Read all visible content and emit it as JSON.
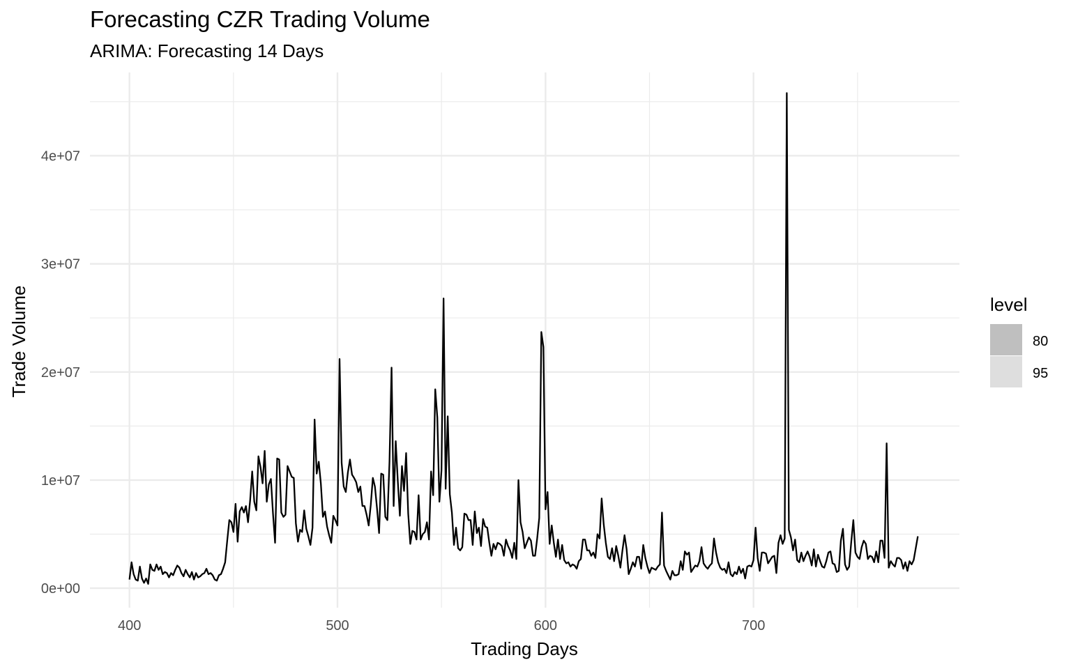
{
  "chart_data": {
    "type": "line",
    "title": "Forecasting CZR Trading Volume",
    "subtitle": "ARIMA: Forecasting 14 Days",
    "xlabel": "Trading Days",
    "ylabel": "Trade Volume",
    "xlim": [
      381,
      799
    ],
    "ylim": [
      -1800000,
      47700000
    ],
    "x_ticks": [
      400,
      500,
      600,
      700
    ],
    "x_tick_labels": [
      "400",
      "500",
      "600",
      "700"
    ],
    "y_ticks": [
      0,
      10000000,
      20000000,
      30000000,
      40000000
    ],
    "y_tick_labels": [
      "0e+00",
      "1e+07",
      "2e+07",
      "3e+07",
      "4e+07"
    ],
    "grid": true,
    "legend": {
      "title": "level",
      "position": "right",
      "items": [
        {
          "label": "80",
          "color": "#bfbfbf"
        },
        {
          "label": "95",
          "color": "#dedede"
        }
      ]
    },
    "line_color": "#000000",
    "series": [
      {
        "x": [
          400,
          401,
          402,
          403,
          404,
          405,
          406,
          407,
          408,
          409,
          410,
          411,
          412,
          413,
          414,
          415,
          416,
          417,
          418,
          419,
          420,
          421,
          422,
          423,
          424,
          425,
          426,
          427,
          428,
          429,
          430,
          431,
          432,
          433,
          434,
          435,
          436,
          437,
          438,
          439,
          440,
          441,
          442,
          443,
          444,
          445,
          446,
          447,
          448,
          449,
          450,
          451,
          452,
          453,
          454,
          455,
          456,
          457,
          458,
          459,
          460,
          461,
          462,
          463,
          464,
          465,
          466,
          467,
          468,
          469,
          470,
          471,
          472,
          473,
          474,
          475,
          476,
          477,
          478,
          479,
          480,
          481,
          482,
          483,
          484,
          485,
          486,
          487,
          488,
          489,
          490,
          491,
          492,
          493,
          494,
          495,
          496,
          497,
          498,
          499,
          500,
          501,
          502,
          503,
          504,
          505,
          506,
          507,
          508,
          509,
          510,
          511,
          512,
          513,
          514,
          515,
          516,
          517,
          518,
          519,
          520,
          521,
          522,
          523,
          524,
          525,
          526,
          527,
          528,
          529,
          530,
          531,
          532,
          533,
          534,
          535,
          536,
          537,
          538,
          539,
          540,
          541,
          542,
          543,
          544,
          545,
          546,
          547,
          548,
          549,
          550,
          551,
          552,
          553,
          554,
          555,
          556,
          557,
          558,
          559,
          560,
          561,
          562,
          563,
          564,
          565,
          566,
          567,
          568,
          569,
          570,
          571,
          572,
          573,
          574,
          575,
          576,
          577,
          578,
          579,
          580,
          581,
          582,
          583,
          584,
          585,
          586,
          587,
          588,
          589,
          590,
          591,
          592,
          593,
          594,
          595,
          596,
          597,
          598,
          599,
          600,
          601,
          602,
          603,
          604,
          605,
          606,
          607,
          608,
          609,
          610,
          611,
          612,
          613,
          614,
          615,
          616,
          617,
          618,
          619,
          620,
          621,
          622,
          623,
          624,
          625,
          626,
          627,
          628,
          629,
          630,
          631,
          632,
          633,
          634,
          635,
          636,
          637,
          638,
          639,
          640,
          641,
          642,
          643,
          644,
          645,
          646,
          647,
          648,
          649,
          650,
          651,
          652,
          653,
          654,
          655,
          656,
          657,
          658,
          659,
          660,
          661,
          662,
          663,
          664,
          665,
          666,
          667,
          668,
          669,
          670,
          671,
          672,
          673,
          674,
          675,
          676,
          677,
          678,
          679,
          680,
          681,
          682,
          683,
          684,
          685,
          686,
          687,
          688,
          689,
          690,
          691,
          692,
          693,
          694,
          695,
          696,
          697,
          698,
          699,
          700,
          701,
          702,
          703,
          704,
          705,
          706,
          707,
          708,
          709,
          710,
          711,
          712,
          713,
          714,
          715,
          716,
          717,
          718,
          719,
          720,
          721,
          722,
          723,
          724,
          725,
          726,
          727,
          728,
          729,
          730,
          731,
          732,
          733,
          734,
          735,
          736,
          737,
          738,
          739,
          740,
          741,
          742,
          743,
          744,
          745,
          746,
          747,
          748,
          749,
          750,
          751,
          752,
          753,
          754,
          755,
          756,
          757,
          758,
          759,
          760,
          761,
          762,
          763,
          764,
          765,
          766,
          767,
          768,
          769,
          770,
          771,
          772,
          773,
          774,
          775,
          776,
          777,
          778,
          779
        ],
        "values": [
          800000,
          2400000,
          1300000,
          800000,
          700000,
          2000000,
          900000,
          500000,
          900000,
          400000,
          2200000,
          1700000,
          1600000,
          2200000,
          1700000,
          2000000,
          1300000,
          1500000,
          1400000,
          1000000,
          1400000,
          1200000,
          1700000,
          2100000,
          1900000,
          1400000,
          1100000,
          1700000,
          1300000,
          1000000,
          1500000,
          800000,
          1400000,
          1000000,
          1100000,
          1300000,
          1400000,
          1800000,
          1300000,
          1400000,
          1200000,
          800000,
          700000,
          1200000,
          1300000,
          1800000,
          2400000,
          4400000,
          6300000,
          6100000,
          5200000,
          7800000,
          4300000,
          7100000,
          7500000,
          7000000,
          7600000,
          6100000,
          8100000,
          10800000,
          8000000,
          7200000,
          12200000,
          11200000,
          9700000,
          12700000,
          8000000,
          9600000,
          10100000,
          6900000,
          4200000,
          12000000,
          11900000,
          7000000,
          6600000,
          6800000,
          11300000,
          10800000,
          10300000,
          10200000,
          6000000,
          4300000,
          5400000,
          5200000,
          7200000,
          5500000,
          4800000,
          4000000,
          5600000,
          15600000,
          10600000,
          11700000,
          9700000,
          6600000,
          7100000,
          5700000,
          4900000,
          4200000,
          6700000,
          6300000,
          5800000,
          21200000,
          11600000,
          9400000,
          8900000,
          10700000,
          11900000,
          10500000,
          10200000,
          9800000,
          8900000,
          9400000,
          7600000,
          7600000,
          6800000,
          5800000,
          7700000,
          10200000,
          9400000,
          7400000,
          5100000,
          10600000,
          10500000,
          6600000,
          6300000,
          11700000,
          20400000,
          7600000,
          13600000,
          9900000,
          6700000,
          11300000,
          9000000,
          12500000,
          6900000,
          4100000,
          5300000,
          5200000,
          4500000,
          8600000,
          4500000,
          5000000,
          5200000,
          6100000,
          4500000,
          10800000,
          8600000,
          18400000,
          15800000,
          8000000,
          10900000,
          26800000,
          9200000,
          15900000,
          8700000,
          7000000,
          4000000,
          5600000,
          3700000,
          3500000,
          3800000,
          6900000,
          6800000,
          6300000,
          6300000,
          4000000,
          7100000,
          5100000,
          5600000,
          3900000,
          6400000,
          5700000,
          5600000,
          4200000,
          3000000,
          4100000,
          3600000,
          4200000,
          4100000,
          3900000,
          3000000,
          4500000,
          3900000,
          3500000,
          2800000,
          4200000,
          2700000,
          10000000,
          6100000,
          5200000,
          3700000,
          4200000,
          4700000,
          4400000,
          3000000,
          3000000,
          4600000,
          6500000,
          23700000,
          22300000,
          7300000,
          8900000,
          4100000,
          5800000,
          4200000,
          2900000,
          4500000,
          2700000,
          4000000,
          2600000,
          2300000,
          2400000,
          2000000,
          2200000,
          2100000,
          1800000,
          2500000,
          2700000,
          4500000,
          4500000,
          3500000,
          3500000,
          3000000,
          3300000,
          2800000,
          5000000,
          4600000,
          8300000,
          5900000,
          4200000,
          2900000,
          2700000,
          3700000,
          2500000,
          3900000,
          3000000,
          1900000,
          3500000,
          4900000,
          3600000,
          1300000,
          1800000,
          2400000,
          2000000,
          2900000,
          2900000,
          1800000,
          4000000,
          2800000,
          2000000,
          1400000,
          1900000,
          1800000,
          1700000,
          2000000,
          2200000,
          7000000,
          2100000,
          1600000,
          1200000,
          800000,
          1600000,
          1200000,
          1200000,
          1300000,
          2500000,
          1700000,
          3400000,
          3100000,
          3300000,
          1500000,
          1800000,
          2100000,
          2000000,
          2500000,
          3800000,
          2300000,
          2000000,
          1800000,
          2100000,
          2300000,
          4600000,
          3300000,
          2400000,
          1900000,
          1700000,
          1800000,
          1400000,
          2400000,
          1300000,
          1100000,
          1500000,
          1300000,
          2000000,
          1400000,
          1800000,
          900000,
          2000000,
          2100000,
          2000000,
          2600000,
          5600000,
          2800000,
          1600000,
          3300000,
          3300000,
          3200000,
          2300000,
          2600000,
          2900000,
          3000000,
          1400000,
          4200000,
          4900000,
          4100000,
          4600000,
          45800000,
          5400000,
          4700000,
          3500000,
          4500000,
          2600000,
          2400000,
          3300000,
          2500000,
          3000000,
          3400000,
          2900000,
          2100000,
          3600000,
          2000000,
          3100000,
          2500000,
          2000000,
          1900000,
          2500000,
          3300000,
          3400000,
          2300000,
          2200000,
          1500000,
          1600000,
          4400000,
          5500000,
          2200000,
          1700000,
          2000000,
          4300000,
          6300000,
          3300000,
          2900000,
          2700000,
          3800000,
          4400000,
          4100000,
          2700000,
          3000000,
          2900000,
          2400000,
          3400000,
          2400000,
          4400000,
          4400000,
          2800000,
          13400000,
          1900000,
          2500000,
          2200000,
          2000000,
          2800000,
          2800000,
          2600000,
          1800000,
          2400000,
          1600000,
          2500000,
          2200000,
          2600000,
          3700000,
          4800000
        ]
      }
    ]
  }
}
